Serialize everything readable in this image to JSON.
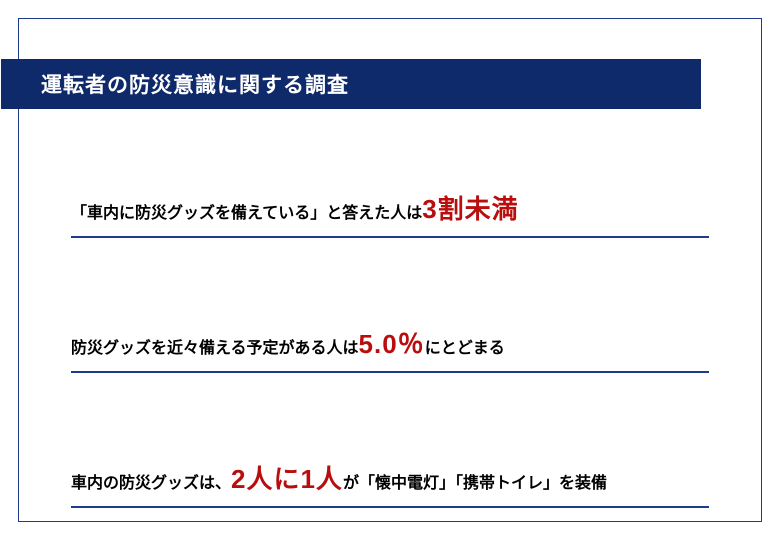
{
  "title": "運転者の防災意識に関する調査",
  "items": [
    {
      "pre": "「車内に防災グッズを備えている」と答えた人は ",
      "emph": "3割未満",
      "post": ""
    },
    {
      "pre": "防災グッズを近々備える予定がある人は ",
      "emph": "5.0％",
      "post": "にとどまる"
    },
    {
      "pre": "車内の防災グッズは、",
      "emph": "2人に1人",
      "post": "が「懐中電灯」「携帯トイレ」を装備"
    }
  ],
  "colors": {
    "title_bg": "#0f2a6b",
    "title_text": "#ffffff",
    "border": "#1c3b8a",
    "emphasis": "#b80e0e",
    "text": "#000000",
    "background": "#ffffff"
  },
  "typography": {
    "title_fontsize": 21,
    "normal_fontsize": 16,
    "emphasis_fontsize": 26
  }
}
